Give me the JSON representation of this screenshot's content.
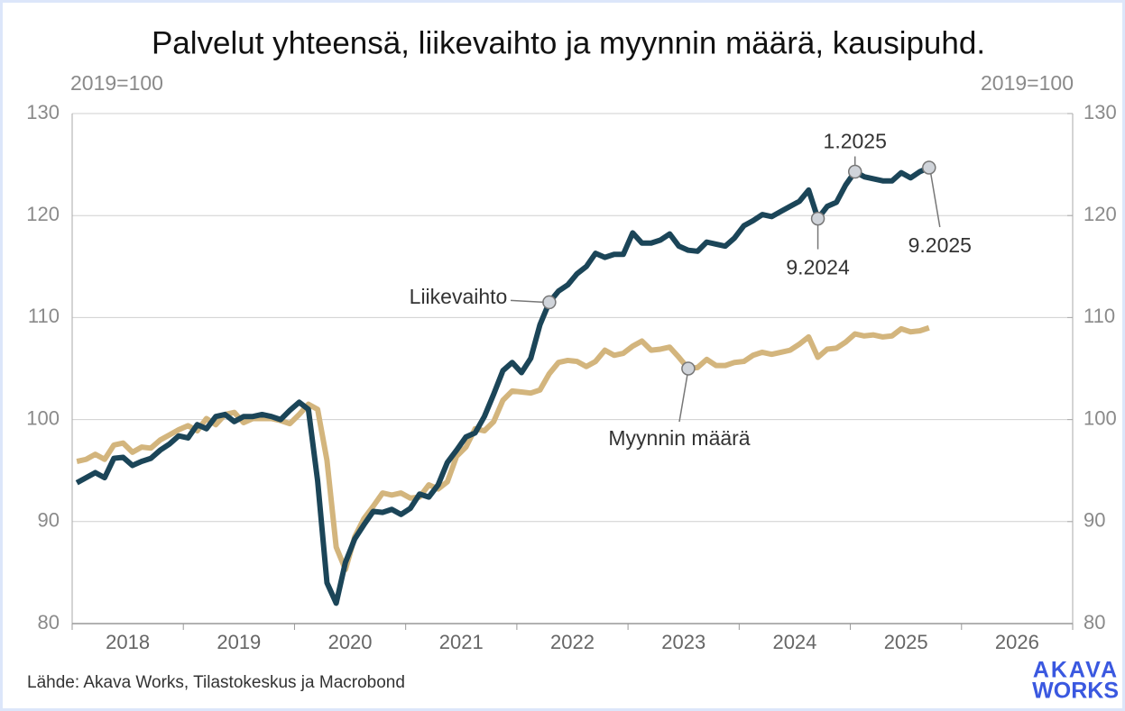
{
  "chart_data": {
    "type": "line",
    "title": "Palvelut yhteensä, liikevaihto ja myynnin määrä, kausipuhd.",
    "y_label": "2019=100",
    "y2_label": "2019=100",
    "source": "Lähde: Akava Works, Tilastokeskus ja Macrobond",
    "logo": [
      "AKAVA",
      "WORKS"
    ],
    "xlim": [
      2018,
      2027
    ],
    "xticks": [
      2018,
      2019,
      2020,
      2021,
      2022,
      2023,
      2024,
      2025,
      2026,
      2027
    ],
    "xlabels": [
      {
        "value": 2018.5,
        "label": "2018"
      },
      {
        "value": 2019.5,
        "label": "2019"
      },
      {
        "value": 2020.5,
        "label": "2020"
      },
      {
        "value": 2021.5,
        "label": "2021"
      },
      {
        "value": 2022.5,
        "label": "2022"
      },
      {
        "value": 2023.5,
        "label": "2023"
      },
      {
        "value": 2024.5,
        "label": "2024"
      },
      {
        "value": 2025.5,
        "label": "2025"
      },
      {
        "value": 2026.5,
        "label": "2026"
      }
    ],
    "ylim": [
      80,
      130
    ],
    "yticks": [
      80,
      90,
      100,
      110,
      120,
      130
    ],
    "y2lim": [
      80,
      130
    ],
    "y2ticks": [
      80,
      90,
      100,
      110,
      120,
      130
    ],
    "grid": true,
    "x": [
      2018.042,
      2018.125,
      2018.208,
      2018.292,
      2018.375,
      2018.458,
      2018.542,
      2018.625,
      2018.708,
      2018.792,
      2018.875,
      2018.958,
      2019.042,
      2019.125,
      2019.208,
      2019.292,
      2019.375,
      2019.458,
      2019.542,
      2019.625,
      2019.708,
      2019.792,
      2019.875,
      2019.958,
      2020.042,
      2020.125,
      2020.208,
      2020.292,
      2020.375,
      2020.458,
      2020.542,
      2020.625,
      2020.708,
      2020.792,
      2020.875,
      2020.958,
      2021.042,
      2021.125,
      2021.208,
      2021.292,
      2021.375,
      2021.458,
      2021.542,
      2021.625,
      2021.708,
      2021.792,
      2021.875,
      2021.958,
      2022.042,
      2022.125,
      2022.208,
      2022.292,
      2022.375,
      2022.458,
      2022.542,
      2022.625,
      2022.708,
      2022.792,
      2022.875,
      2022.958,
      2023.042,
      2023.125,
      2023.208,
      2023.292,
      2023.375,
      2023.458,
      2023.542,
      2023.625,
      2023.708,
      2023.792,
      2023.875,
      2023.958,
      2024.042,
      2024.125,
      2024.208,
      2024.292,
      2024.375,
      2024.458,
      2024.542,
      2024.625,
      2024.708,
      2024.792,
      2024.875,
      2024.958,
      2025.042,
      2025.125,
      2025.208,
      2025.292,
      2025.375,
      2025.458,
      2025.542,
      2025.625,
      2025.708
    ],
    "series": [
      {
        "name": "Liikevaihto",
        "color": "#1b4558",
        "values": [
          93.8,
          94.3,
          94.8,
          94.3,
          96.2,
          96.3,
          95.5,
          95.9,
          96.2,
          97.0,
          97.6,
          98.4,
          98.2,
          99.5,
          99.1,
          100.3,
          100.5,
          99.8,
          100.3,
          100.3,
          100.5,
          100.3,
          100.0,
          100.9,
          101.7,
          101.0,
          94.0,
          84.0,
          82.0,
          86.0,
          88.3,
          89.7,
          91.0,
          90.9,
          91.2,
          90.7,
          91.3,
          92.7,
          92.4,
          93.6,
          95.8,
          97.0,
          98.3,
          98.7,
          100.3,
          102.5,
          104.8,
          105.6,
          104.6,
          106.0,
          109.3,
          111.5,
          112.6,
          113.2,
          114.3,
          115.0,
          116.3,
          115.9,
          116.2,
          116.2,
          118.3,
          117.3,
          117.3,
          117.6,
          118.2,
          117.0,
          116.6,
          116.5,
          117.4,
          117.2,
          117.0,
          117.8,
          119.0,
          119.5,
          120.1,
          119.9,
          120.4,
          120.9,
          121.4,
          122.5,
          119.7,
          120.9,
          121.3,
          123.0,
          124.3,
          123.8,
          123.6,
          123.4,
          123.4,
          124.2,
          123.7,
          124.3,
          124.7
        ]
      },
      {
        "name": "Myynnin määrä",
        "color": "#d3b57d",
        "values": [
          95.9,
          96.1,
          96.6,
          96.1,
          97.5,
          97.7,
          96.8,
          97.3,
          97.2,
          98.0,
          98.5,
          99.0,
          99.4,
          98.9,
          100.1,
          99.5,
          100.5,
          100.7,
          99.7,
          100.1,
          100.1,
          100.1,
          99.9,
          99.6,
          100.5,
          101.5,
          101.0,
          96.0,
          87.5,
          85.3,
          88.5,
          90.3,
          91.5,
          92.8,
          92.6,
          92.8,
          92.3,
          92.4,
          93.6,
          93.2,
          93.9,
          96.4,
          97.3,
          99.1,
          98.9,
          99.8,
          101.9,
          102.8,
          102.7,
          102.6,
          102.9,
          104.5,
          105.6,
          105.8,
          105.7,
          105.2,
          105.7,
          106.8,
          106.3,
          106.5,
          107.2,
          107.7,
          106.8,
          106.9,
          107.1,
          106.1,
          105.0,
          105.1,
          105.9,
          105.3,
          105.3,
          105.6,
          105.7,
          106.3,
          106.6,
          106.4,
          106.6,
          106.8,
          107.4,
          108.1,
          106.1,
          106.9,
          107.0,
          107.6,
          108.4,
          108.2,
          108.3,
          108.1,
          108.2,
          108.9,
          108.6,
          108.7,
          109.0
        ]
      }
    ],
    "annotations": [
      {
        "text": "1.2025",
        "x": 2025.042
      },
      {
        "text": "9.2024",
        "x": 2024.708
      },
      {
        "text": "9.2025",
        "x": 2025.708
      }
    ]
  }
}
